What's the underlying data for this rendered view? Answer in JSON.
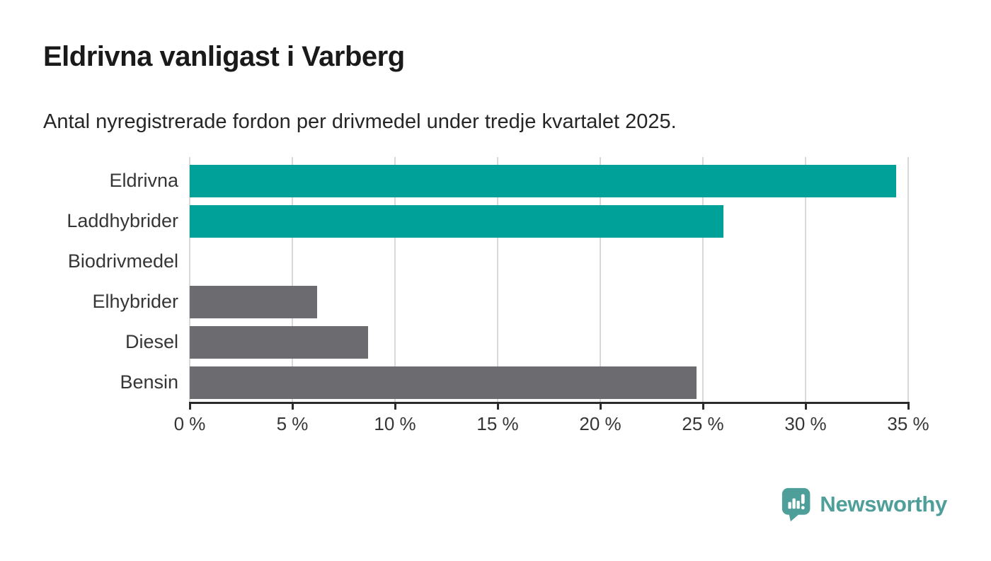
{
  "title": "Eldrivna vanligast i Varberg",
  "subtitle": "Antal nyregistrerade fordon per drivmedel under tredje kvartalet 2025.",
  "chart_data": {
    "type": "bar",
    "orientation": "horizontal",
    "title": "Eldrivna vanligast i Varberg",
    "subtitle": "Antal nyregistrerade fordon per drivmedel under tredje kvartalet 2025.",
    "categories": [
      "Eldrivna",
      "Laddhybrider",
      "Biodrivmedel",
      "Elhybrider",
      "Diesel",
      "Bensin"
    ],
    "values": [
      34.4,
      26.0,
      0.0,
      6.2,
      8.7,
      24.7
    ],
    "unit": "%",
    "bar_colors": [
      "#00a199",
      "#00a199",
      "#00a199",
      "#6b6b70",
      "#6b6b70",
      "#6b6b70"
    ],
    "xlim": [
      0,
      35
    ],
    "xticks": [
      0,
      5,
      10,
      15,
      20,
      25,
      30,
      35
    ],
    "xtick_labels": [
      "0 %",
      "5 %",
      "10 %",
      "15 %",
      "20 %",
      "25 %",
      "30 %",
      "35 %"
    ],
    "grid": "vertical-gridlines",
    "legend": "none",
    "ylabel": "",
    "xlabel": ""
  },
  "branding": {
    "logo_text": "Newsworthy",
    "logo_icon": "newsworthy-speech-bubble-bar-chart-icon",
    "logo_color": "#4e9f99"
  },
  "colors": {
    "background": "#ffffff",
    "accent_teal": "#00a199",
    "neutral_gray": "#6b6b70",
    "gridline": "#d8d8d8",
    "axis": "#2b2b2b",
    "text": "#363636"
  }
}
